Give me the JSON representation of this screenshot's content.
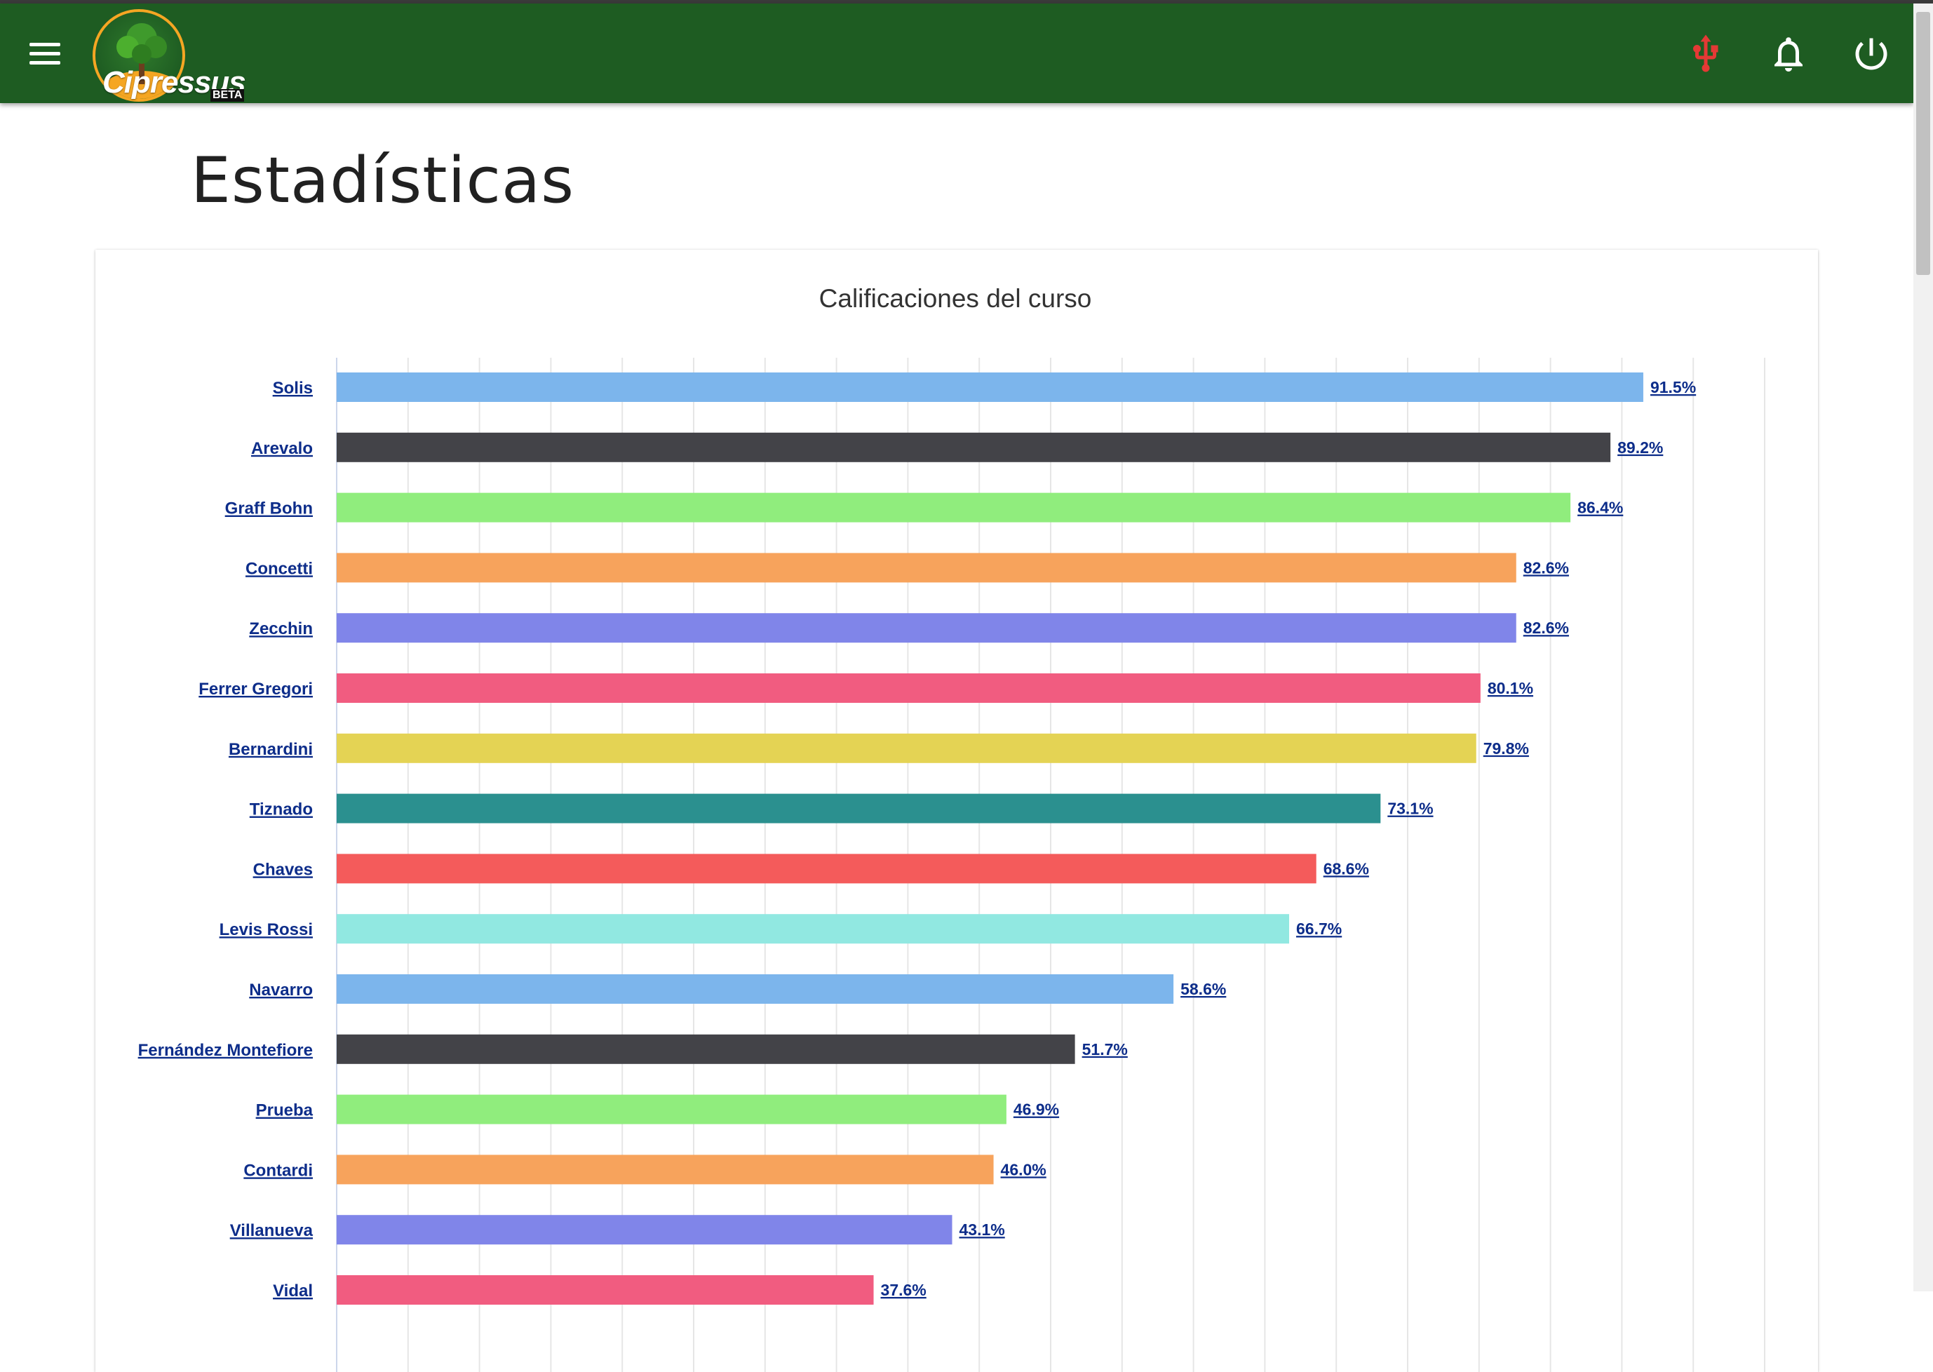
{
  "app": {
    "name": "Cipressus",
    "badge": "BETA"
  },
  "icons": {
    "menu": "menu-icon",
    "usb": "usb-icon",
    "notifications": "bell-icon",
    "power": "power-icon"
  },
  "colors": {
    "appbar": "#1e5c22",
    "usb_icon": "#e53935",
    "link_text": "#0d2d8a"
  },
  "page": {
    "title": "Estadísticas"
  },
  "chart_data": {
    "type": "bar",
    "orientation": "horizontal",
    "title": "Calificaciones del curso",
    "xlabel": "",
    "ylabel": "",
    "xlim": [
      0,
      100
    ],
    "grid": true,
    "value_suffix": "%",
    "categories": [
      "Solis",
      "Arevalo",
      "Graff Bohn",
      "Concetti",
      "Zecchin",
      "Ferrer Gregori",
      "Bernardini",
      "Tiznado",
      "Chaves",
      "Levis Rossi",
      "Navarro",
      "Fernández Montefiore",
      "Prueba",
      "Contardi",
      "Villanueva",
      "Vidal"
    ],
    "values": [
      91.5,
      89.2,
      86.4,
      82.6,
      82.6,
      80.1,
      79.8,
      73.1,
      68.6,
      66.7,
      58.6,
      51.7,
      46.9,
      46.0,
      43.1,
      37.6
    ],
    "value_labels": [
      "91.5%",
      "89.2%",
      "86.4%",
      "82.6%",
      "82.6%",
      "80.1%",
      "79.8%",
      "73.1%",
      "68.6%",
      "66.7%",
      "58.6%",
      "51.7%",
      "46.9%",
      "46.0%",
      "43.1%",
      "37.6%"
    ],
    "colors": [
      "#7cb5ec",
      "#434348",
      "#90ed7d",
      "#f7a35c",
      "#8085e9",
      "#f15c80",
      "#e4d354",
      "#2b908f",
      "#f45b5b",
      "#91e8e1",
      "#7cb5ec",
      "#434348",
      "#90ed7d",
      "#f7a35c",
      "#8085e9",
      "#f15c80"
    ]
  }
}
